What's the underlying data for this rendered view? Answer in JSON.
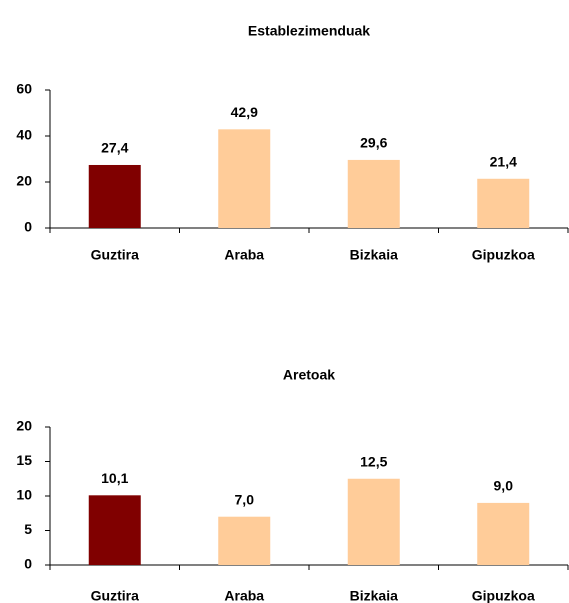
{
  "chart_data": [
    {
      "type": "bar",
      "title": "Establezimenduak",
      "categories": [
        "Guztira",
        "Araba",
        "Bizkaia",
        "Gipuzkoa"
      ],
      "values": [
        27.4,
        42.9,
        29.6,
        21.4
      ],
      "value_labels": [
        "27,4",
        "42,9",
        "29,6",
        "21,4"
      ],
      "colors": [
        "#800000",
        "#ffcc99",
        "#ffcc99",
        "#ffcc99"
      ],
      "ylim": [
        0,
        60
      ],
      "yticks": [
        0,
        20,
        40,
        60
      ]
    },
    {
      "type": "bar",
      "title": "Aretoak",
      "categories": [
        "Guztira",
        "Araba",
        "Bizkaia",
        "Gipuzkoa"
      ],
      "values": [
        10.1,
        7.0,
        12.5,
        9.0
      ],
      "value_labels": [
        "10,1",
        "7,0",
        "12,5",
        "9,0"
      ],
      "colors": [
        "#800000",
        "#ffcc99",
        "#ffcc99",
        "#ffcc99"
      ],
      "ylim": [
        0,
        20
      ],
      "yticks": [
        0,
        5,
        10,
        15,
        20
      ]
    }
  ]
}
